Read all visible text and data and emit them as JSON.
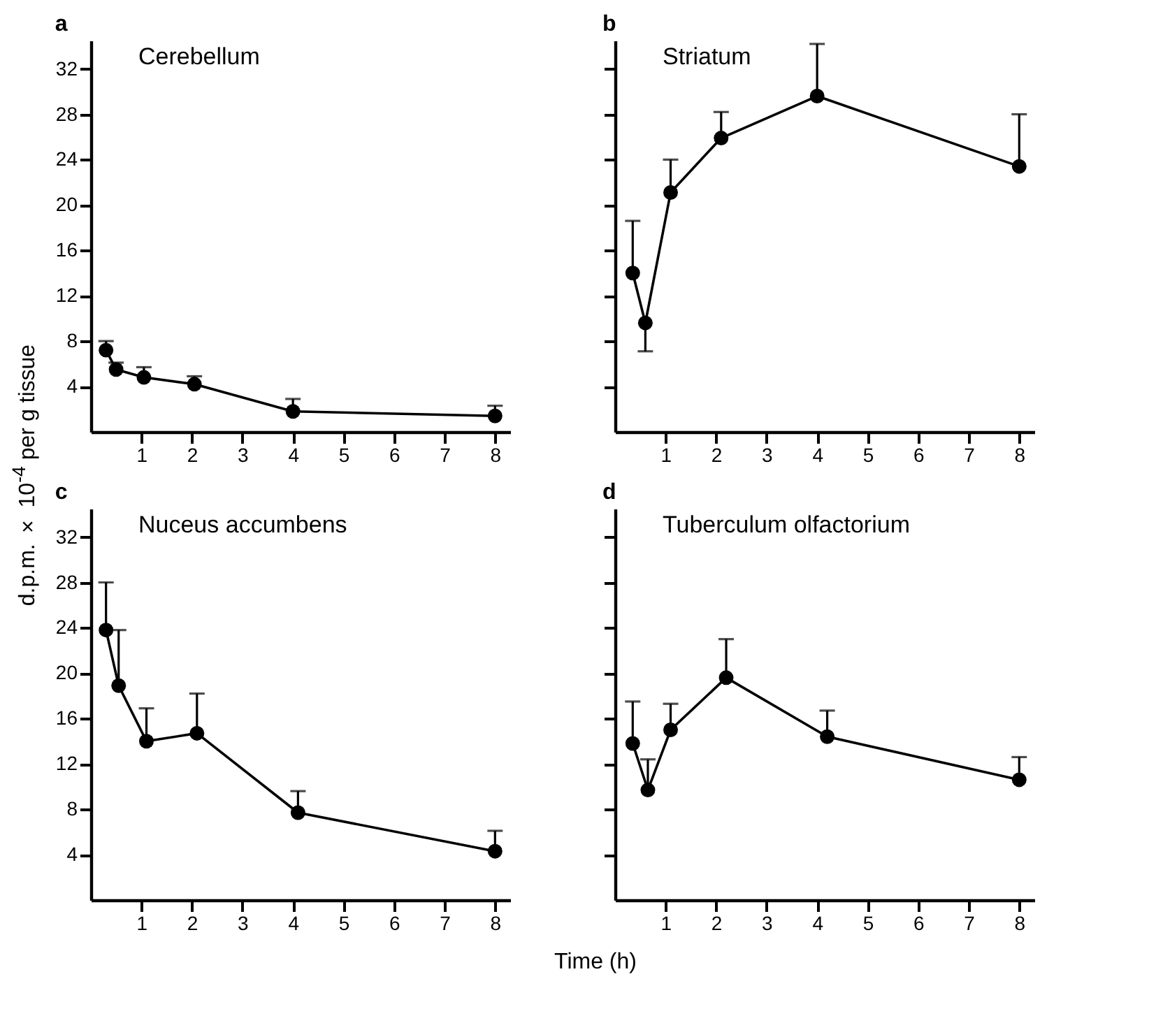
{
  "chart_data": [
    {
      "type": "line",
      "title": "a",
      "annotations": [
        "Cerebellum"
      ],
      "ylabel": "d.p.m. × 10$^{-4}$ per g tissue",
      "xlim": [
        0,
        8.3
      ],
      "ylim": [
        0,
        34.5
      ],
      "xticks": [
        1,
        2,
        3,
        4,
        5,
        6,
        7,
        8
      ],
      "yticks": [
        4,
        8,
        12,
        16,
        20,
        24,
        28,
        32
      ],
      "marker": "circle",
      "line_style": "solid",
      "grid": false,
      "series": [
        {
          "color": "#000000",
          "x": [
            0.3,
            0.5,
            1.05,
            2.05,
            4,
            8
          ],
          "values": [
            7.2,
            5.5,
            4.8,
            4.2,
            1.8,
            1.4
          ],
          "errors": [
            [
              7.2,
              8.0
            ],
            [
              5.5,
              6.1
            ],
            [
              4.8,
              5.7
            ],
            [
              4.2,
              4.9
            ],
            [
              1.8,
              2.9
            ],
            [
              1.4,
              2.3
            ]
          ]
        }
      ]
    },
    {
      "type": "line",
      "title": "b",
      "annotations": [
        "Striatum"
      ],
      "xlim": [
        0,
        8.3
      ],
      "ylim": [
        0,
        34.5
      ],
      "xticks": [
        1,
        2,
        3,
        4,
        5,
        6,
        7,
        8
      ],
      "yticks": [
        4,
        8,
        12,
        16,
        20,
        24,
        28,
        32
      ],
      "tick_labels": "x",
      "marker": "circle",
      "line_style": "solid",
      "grid": false,
      "series": [
        {
          "color": "#000000",
          "x": [
            0.35,
            0.6,
            1.1,
            2.1,
            4,
            8
          ],
          "values": [
            14,
            9.6,
            21.1,
            25.9,
            29.6,
            23.4
          ],
          "errors": [
            [
              14,
              18.6
            ],
            [
              7.1,
              9.6
            ],
            [
              21.1,
              24
            ],
            [
              25.9,
              28.2
            ],
            [
              29.6,
              34.2
            ],
            [
              23.4,
              28
            ]
          ]
        }
      ]
    },
    {
      "type": "line",
      "title": "c",
      "annotations": [
        "Nuceus accumbens"
      ],
      "xlabel": "Time (h)",
      "xlim": [
        0,
        8.3
      ],
      "ylim": [
        0,
        34.5
      ],
      "xticks": [
        1,
        2,
        3,
        4,
        5,
        6,
        7,
        8
      ],
      "yticks": [
        4,
        8,
        12,
        16,
        20,
        24,
        28,
        32
      ],
      "marker": "circle",
      "line_style": "solid",
      "grid": false,
      "series": [
        {
          "color": "#000000",
          "x": [
            0.3,
            0.55,
            1.1,
            2.1,
            4.1,
            8
          ],
          "values": [
            23.8,
            18.9,
            14,
            14.7,
            7.7,
            4.3
          ],
          "errors": [
            [
              23.8,
              28
            ],
            [
              18.9,
              23.8
            ],
            [
              14,
              16.9
            ],
            [
              14.7,
              18.2
            ],
            [
              7.7,
              9.6
            ],
            [
              4.3,
              6.1
            ]
          ]
        }
      ]
    },
    {
      "type": "line",
      "title": "d",
      "annotations": [
        "Tuberculum olfactorium"
      ],
      "xlim": [
        0,
        8.3
      ],
      "ylim": [
        0,
        34.5
      ],
      "xticks": [
        1,
        2,
        3,
        4,
        5,
        6,
        7,
        8
      ],
      "yticks": [
        4,
        8,
        12,
        16,
        20,
        24,
        28,
        32
      ],
      "tick_labels": "x",
      "marker": "circle",
      "line_style": "solid",
      "grid": false,
      "series": [
        {
          "color": "#000000",
          "x": [
            0.35,
            0.65,
            1.1,
            2.2,
            4.2,
            8
          ],
          "values": [
            13.8,
            9.7,
            15,
            19.6,
            14.4,
            10.6
          ],
          "errors": [
            [
              13.8,
              17.5
            ],
            [
              9.7,
              12.4
            ],
            [
              15,
              17.3
            ],
            [
              19.6,
              23
            ],
            [
              14.4,
              16.7
            ],
            [
              10.6,
              12.6
            ]
          ]
        }
      ]
    }
  ]
}
